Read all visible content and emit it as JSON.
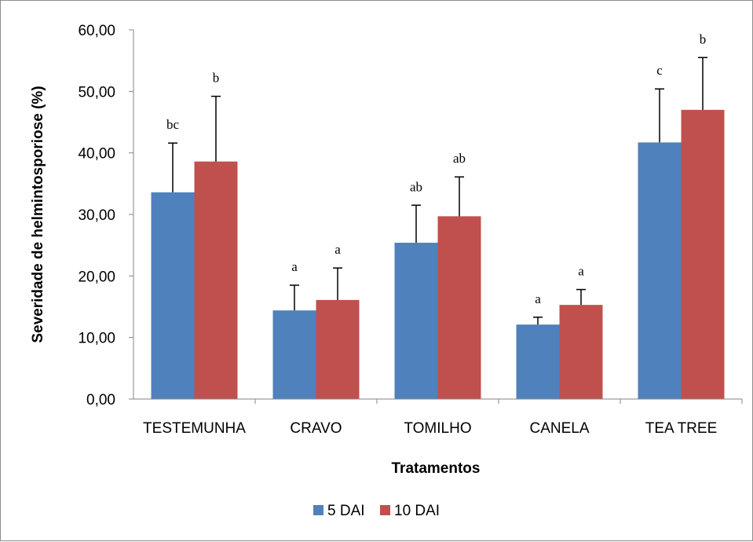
{
  "chart_data": {
    "type": "bar",
    "categories": [
      "TESTEMUNHA",
      "CRAVO",
      "TOMILHO",
      "CANELA",
      "TEA TREE"
    ],
    "series": [
      {
        "name": "5 DAI",
        "color": "#4f81bd",
        "values": [
          33.6,
          14.4,
          25.4,
          12.1,
          41.7
        ],
        "errors": [
          8.0,
          4.1,
          6.1,
          1.2,
          8.7
        ],
        "labels": [
          "bc",
          "a",
          "ab",
          "a",
          "c"
        ]
      },
      {
        "name": "10 DAI",
        "color": "#c0504d",
        "values": [
          38.6,
          16.1,
          29.7,
          15.3,
          47.0
        ],
        "errors": [
          10.6,
          5.2,
          6.4,
          2.5,
          8.5
        ],
        "labels": [
          "b",
          "a",
          "ab",
          "a",
          "b"
        ]
      }
    ],
    "yticks": [
      "0,00",
      "10,00",
      "20,00",
      "30,00",
      "40,00",
      "50,00",
      "60,00"
    ],
    "ylim": [
      0,
      60
    ],
    "xlabel": "Tratamentos",
    "ylabel": "Severidade de helmintosporiose  (%)",
    "legend_position": "bottom",
    "grid": false
  }
}
